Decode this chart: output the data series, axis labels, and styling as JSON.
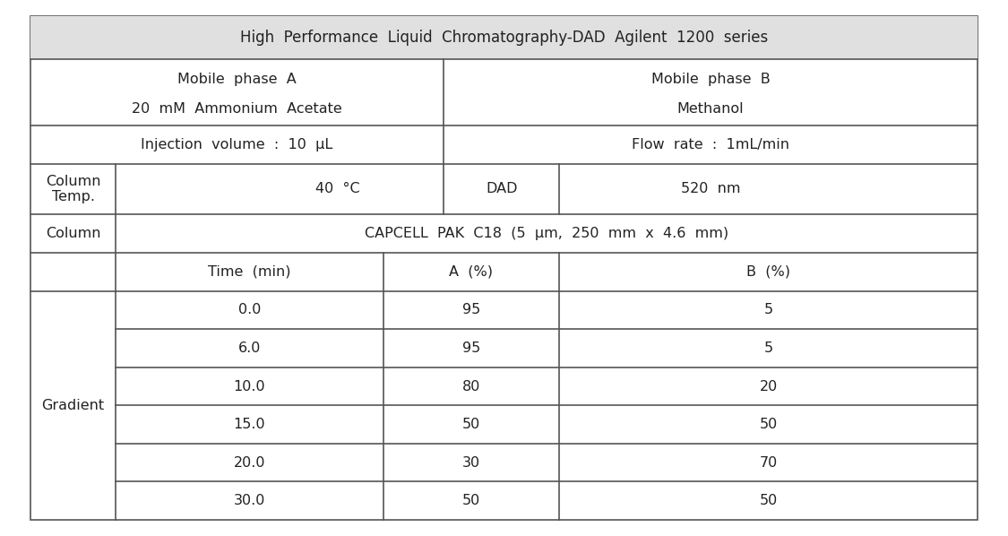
{
  "title": "High  Performance  Liquid  Chromatography-DAD  Agilent  1200  series",
  "title_bg": "#e0e0e0",
  "mobile_phase_a_line1": "Mobile  phase  A",
  "mobile_phase_a_line2": "20  mM  Ammonium  Acetate",
  "mobile_phase_b_line1": "Mobile  phase  B",
  "mobile_phase_b_line2": "Methanol",
  "injection_volume": "Injection  volume  :  10  μL",
  "flow_rate": "Flow  rate  :  1mL/min",
  "column_temp_label": "Column\nTemp.",
  "column_temp_value": "40  °C",
  "dad_label": "DAD",
  "wavelength": "520  nm",
  "column_label": "Column",
  "column_value": "CAPCELL  PAK  C18  (5  μm,  250  mm  x  4.6  mm)",
  "gradient_label": "Gradient",
  "gradient_headers": [
    "Time  (min)",
    "A  (%)",
    "B  (%)"
  ],
  "gradient_data": [
    [
      "0.0",
      "95",
      "5"
    ],
    [
      "6.0",
      "95",
      "5"
    ],
    [
      "10.0",
      "80",
      "20"
    ],
    [
      "15.0",
      "50",
      "50"
    ],
    [
      "20.0",
      "30",
      "70"
    ],
    [
      "30.0",
      "50",
      "50"
    ]
  ],
  "border_color": "#555555",
  "text_color": "#222222",
  "bg_color": "#ffffff",
  "font_size": 11.5,
  "font_family": "DejaVu Sans"
}
